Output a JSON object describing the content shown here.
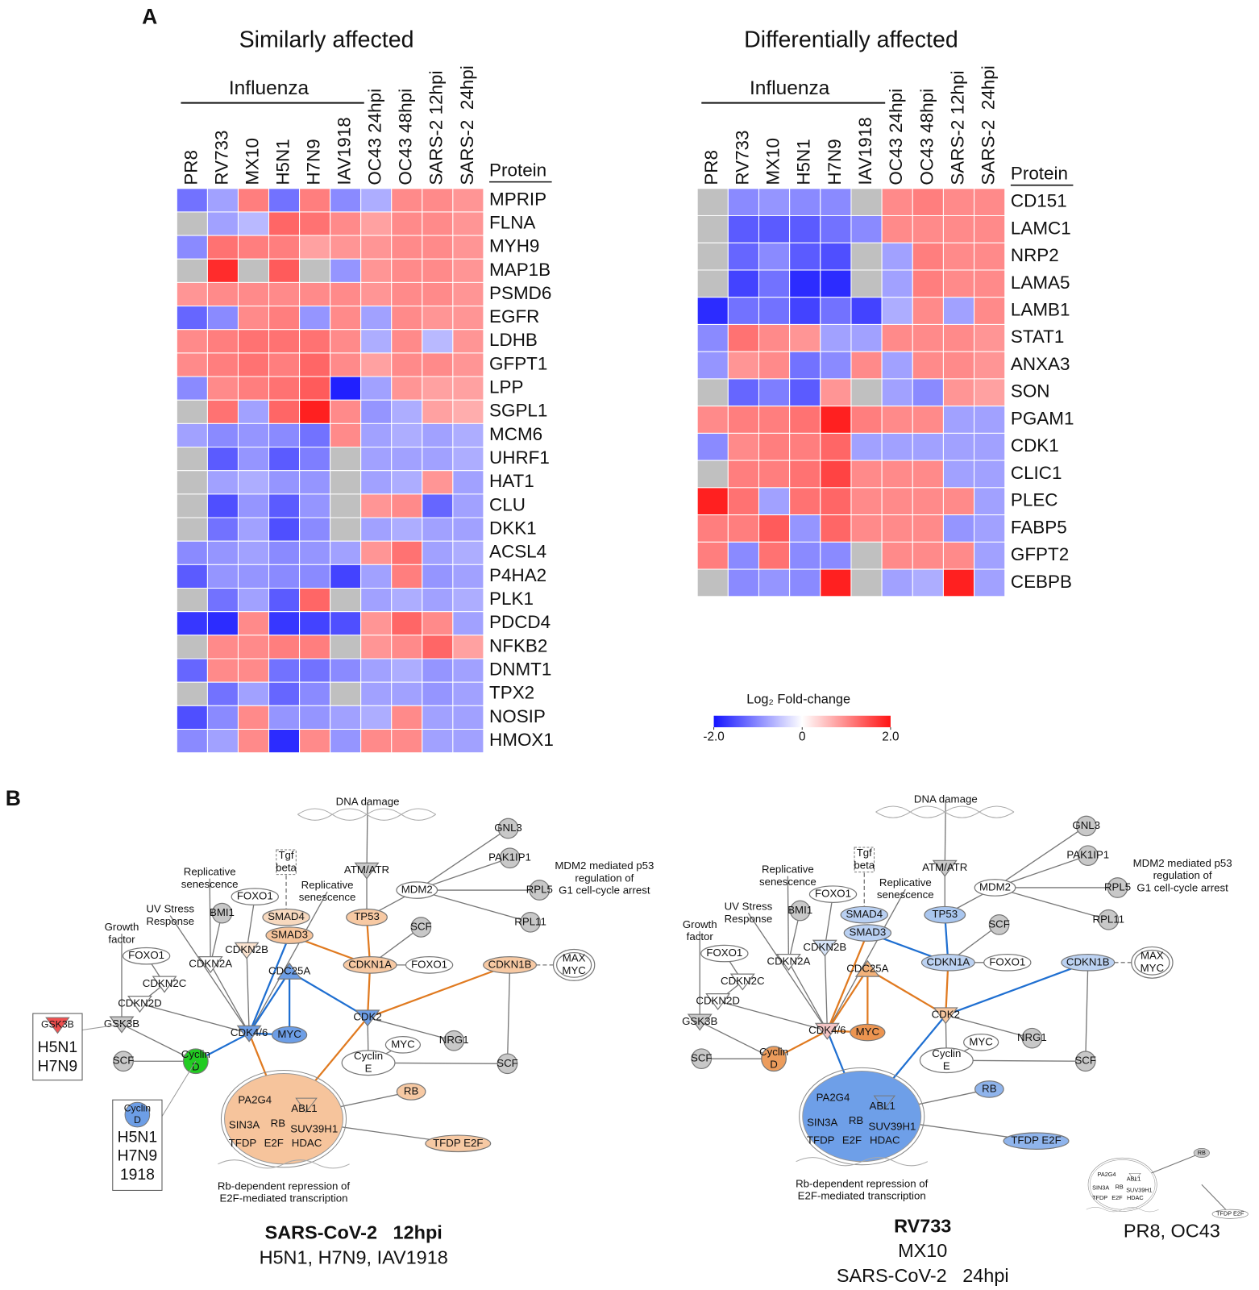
{
  "panel_labels": [
    "A",
    "B"
  ],
  "chart_data": [
    {
      "type": "heatmap",
      "title": "Similarly affected",
      "group_label": "Influenza",
      "row_header": "Protein",
      "columns": [
        "PR8",
        "RV733",
        "MX10",
        "H5N1",
        "H7N9",
        "IAV1918",
        "OC43 24hpi",
        "OC43 48hpi",
        "SARS-2 12hpi",
        "SARS-2  24hpi"
      ],
      "rows": [
        "MPRIP",
        "FLNA",
        "MYH9",
        "MAP1B",
        "PSMD6",
        "EGFR",
        "LDHB",
        "GFPT1",
        "LPP",
        "SGPL1",
        "MCM6",
        "UHRF1",
        "HAT1",
        "CLU",
        "DKK1",
        "ACSL4",
        "P4HA2",
        "PLK1",
        "PDCD4",
        "NFKB2",
        "DNMT1",
        "TPX2",
        "NOSIP",
        "HMOX1"
      ],
      "values": [
        [
          -1.2,
          -0.8,
          1.1,
          -1.2,
          1.1,
          -1.0,
          -0.7,
          1.0,
          1.0,
          0.9
        ],
        [
          null,
          -0.8,
          -0.6,
          1.3,
          1.2,
          1.0,
          0.8,
          1.0,
          1.0,
          0.9
        ],
        [
          -1.0,
          1.2,
          1.1,
          1.1,
          0.8,
          0.9,
          0.9,
          1.0,
          1.0,
          0.9
        ],
        [
          null,
          1.8,
          null,
          1.4,
          null,
          -0.9,
          0.9,
          1.0,
          1.0,
          0.9
        ],
        [
          0.9,
          1.0,
          1.0,
          1.0,
          1.0,
          1.0,
          0.9,
          1.0,
          1.0,
          0.9
        ],
        [
          -1.3,
          -1.0,
          1.0,
          1.1,
          -0.9,
          1.0,
          -0.8,
          1.0,
          0.9,
          0.9
        ],
        [
          1.0,
          1.1,
          1.2,
          1.2,
          1.2,
          1.0,
          -0.7,
          1.0,
          -0.6,
          0.9
        ],
        [
          1.0,
          1.1,
          1.2,
          1.1,
          1.3,
          1.0,
          0.8,
          1.0,
          1.0,
          0.9
        ],
        [
          -1.0,
          1.0,
          1.1,
          1.2,
          1.4,
          -1.9,
          -0.8,
          0.9,
          0.8,
          0.8
        ],
        [
          null,
          1.2,
          -0.8,
          1.3,
          1.9,
          1.0,
          -0.9,
          -0.7,
          0.8,
          0.7
        ],
        [
          -0.8,
          -1.0,
          -0.9,
          -1.0,
          -1.2,
          1.0,
          -0.8,
          -0.7,
          -0.8,
          -0.7
        ],
        [
          null,
          -1.4,
          -0.9,
          -1.4,
          -1.1,
          null,
          -0.8,
          -0.8,
          -0.8,
          -0.7
        ],
        [
          null,
          -0.8,
          -0.7,
          -0.9,
          -0.9,
          null,
          -0.8,
          -0.7,
          0.9,
          -0.8
        ],
        [
          null,
          -1.5,
          -0.9,
          -1.4,
          -0.9,
          null,
          0.9,
          1.0,
          -1.3,
          -0.8
        ],
        [
          null,
          -1.2,
          -0.8,
          -1.5,
          -1.0,
          null,
          -0.8,
          -0.7,
          -0.8,
          -0.8
        ],
        [
          -1.0,
          -0.9,
          -0.8,
          -1.0,
          -0.9,
          -0.8,
          0.9,
          1.2,
          -0.8,
          -0.7
        ],
        [
          -1.4,
          -0.9,
          -0.9,
          -1.0,
          -1.0,
          -1.6,
          -0.8,
          1.1,
          -0.9,
          -0.8
        ],
        [
          null,
          -1.2,
          -0.8,
          -1.4,
          1.3,
          null,
          -0.8,
          -0.7,
          -0.8,
          -0.7
        ],
        [
          -1.7,
          -1.8,
          1.0,
          -1.7,
          -1.6,
          -1.5,
          0.9,
          1.3,
          1.0,
          -0.8
        ],
        [
          null,
          1.0,
          1.0,
          1.1,
          1.1,
          null,
          0.9,
          1.0,
          1.3,
          0.8
        ],
        [
          -1.3,
          1.0,
          1.0,
          -1.2,
          -1.2,
          -1.0,
          -0.8,
          -0.7,
          -0.9,
          -0.8
        ],
        [
          null,
          -1.2,
          -0.8,
          -1.3,
          -1.0,
          null,
          -0.8,
          -0.8,
          -0.9,
          -0.8
        ],
        [
          -1.5,
          -1.0,
          1.0,
          -0.9,
          -0.9,
          -0.8,
          -0.7,
          1.0,
          -0.8,
          -0.8
        ],
        [
          -1.0,
          -0.8,
          1.0,
          -1.8,
          1.0,
          -0.9,
          1.0,
          1.0,
          -0.8,
          -0.8
        ]
      ]
    },
    {
      "type": "heatmap",
      "title": "Differentially affected",
      "group_label": "Influenza",
      "row_header": "Protein",
      "columns": [
        "PR8",
        "RV733",
        "MX10",
        "H5N1",
        "H7N9",
        "IAV1918",
        "OC43 24hpi",
        "OC43 48hpi",
        "SARS-2 12hpi",
        "SARS-2  24hpi"
      ],
      "rows": [
        "CD151",
        "LAMC1",
        "NRP2",
        "LAMA5",
        "LAMB1",
        "STAT1",
        "ANXA3",
        "SON",
        "PGAM1",
        "CDK1",
        "CLIC1",
        "PLEC",
        "FABP5",
        "GFPT2",
        "CEBPB"
      ],
      "values": [
        [
          null,
          -1.0,
          -0.9,
          -1.0,
          -1.0,
          null,
          1.0,
          1.1,
          1.0,
          1.0
        ],
        [
          null,
          -1.4,
          -1.4,
          -1.4,
          -1.2,
          -1.0,
          1.0,
          1.0,
          1.0,
          1.0
        ],
        [
          null,
          -1.3,
          -1.0,
          -1.4,
          -1.5,
          null,
          -0.8,
          1.1,
          1.0,
          1.0
        ],
        [
          null,
          -1.6,
          -1.2,
          -1.8,
          -1.8,
          null,
          -0.8,
          1.1,
          1.0,
          1.0
        ],
        [
          -1.8,
          -1.2,
          -1.2,
          -1.6,
          -1.2,
          -1.6,
          -0.7,
          1.0,
          -0.8,
          1.0
        ],
        [
          -1.0,
          1.2,
          1.0,
          0.9,
          -0.8,
          -0.8,
          1.0,
          1.0,
          1.0,
          0.9
        ],
        [
          -0.9,
          0.9,
          1.0,
          -1.2,
          -1.0,
          1.0,
          -0.8,
          1.0,
          1.0,
          0.9
        ],
        [
          null,
          -1.3,
          -1.1,
          -1.4,
          0.9,
          null,
          -0.8,
          -1.0,
          0.9,
          0.8
        ],
        [
          1.0,
          1.1,
          1.1,
          1.2,
          1.9,
          1.1,
          1.0,
          1.0,
          -0.8,
          -0.8
        ],
        [
          -1.0,
          1.0,
          1.1,
          1.1,
          1.3,
          -0.8,
          -0.8,
          -0.8,
          -0.8,
          -0.8
        ],
        [
          null,
          1.1,
          1.1,
          1.2,
          1.6,
          1.0,
          1.0,
          1.0,
          -0.8,
          -0.8
        ],
        [
          1.9,
          1.2,
          -0.8,
          1.2,
          1.3,
          1.0,
          1.0,
          1.0,
          1.0,
          -0.8
        ],
        [
          1.1,
          1.1,
          1.4,
          -0.9,
          1.3,
          1.0,
          1.0,
          1.0,
          -0.9,
          -0.8
        ],
        [
          1.1,
          -1.0,
          1.2,
          -1.0,
          -1.0,
          null,
          1.0,
          1.0,
          1.0,
          -0.8
        ],
        [
          null,
          -1.0,
          -0.9,
          -1.0,
          1.9,
          null,
          -0.8,
          -0.7,
          1.9,
          -0.8
        ]
      ]
    }
  ],
  "colorbar": {
    "title": "Log₂ Fold-change",
    "zlim": [
      -2,
      2
    ],
    "ticks": [
      {
        "value": -2,
        "label": "-2.0"
      },
      0,
      {
        "value": 2,
        "label": "2.0"
      }
    ],
    "colors": [
      "#1414ff",
      "#ffffff",
      "#ff1414"
    ],
    "missing_color": "#c0c0c0"
  },
  "diagrams": [
    {
      "nodes": [
        {
          "label": "DNA damage"
        },
        {
          "label": "ATM/ATR"
        },
        {
          "label": "TP53"
        },
        {
          "label": "MDM2"
        },
        {
          "label": "GNL3"
        },
        {
          "label": "PAK1IP1"
        },
        {
          "label": "RPL5"
        },
        {
          "label": "RPL11"
        },
        {
          "label": [
            "MDM2 mediated p53",
            "regulation of",
            "G1 cell-cycle arrest"
          ]
        },
        {
          "label": [
            "Tgf",
            "beta"
          ]
        },
        {
          "label": "SMAD4"
        },
        {
          "label": "SMAD3"
        },
        {
          "label": [
            "Replicative",
            "senescence"
          ]
        },
        {
          "label": [
            "Replicative",
            "senescence"
          ]
        },
        {
          "label": "FOXO1"
        },
        {
          "label": "BMI1"
        },
        {
          "label": [
            "UV Stress",
            "Response"
          ]
        },
        {
          "label": "CDKN2B"
        },
        {
          "label": "CDKN2A"
        },
        {
          "label": [
            "Growth",
            "factor"
          ]
        },
        {
          "label": "FOXO1"
        },
        {
          "label": "CDKN2C"
        },
        {
          "label": "CDKN2D"
        },
        {
          "label": "GSK3B"
        },
        {
          "label": "SCF"
        },
        {
          "label": "CDKN1A"
        },
        {
          "label": "FOXO1"
        },
        {
          "label": "CDKN1B"
        },
        {
          "label": [
            "MAX",
            "MYC"
          ]
        },
        {
          "label": "CDC25A"
        },
        {
          "label": "CDK2"
        },
        {
          "label": "CDK4/6"
        },
        {
          "label": "MYC"
        },
        {
          "label": [
            "Cyclin",
            "D"
          ]
        },
        {
          "label": "SCF"
        },
        {
          "label": "SCF"
        },
        {
          "label": "MYC"
        },
        {
          "label": "NRG1"
        },
        {
          "label": [
            "Cyclin",
            "E"
          ]
        },
        {
          "label": "RB"
        },
        {
          "label": "TFDP E2F"
        },
        {
          "label": [
            "Rb-dependent repression of",
            "E2F-mediated transcription"
          ]
        }
      ],
      "complex": [
        "PA2G4",
        "ABL1",
        "SIN3A",
        "RB",
        "SUV39H1",
        "TFDP",
        "E2F",
        "HDAC"
      ],
      "boxes": [
        {
          "label": "GSK3B",
          "strains": [
            "H5N1",
            "H7N9"
          ]
        },
        {
          "label": [
            "Cyclin",
            "D"
          ],
          "strains": [
            "H5N1",
            "H7N9",
            "1918"
          ]
        }
      ],
      "caption": [
        "SARS-CoV-2   12hpi",
        "H5N1, H7N9, IAV1918"
      ]
    },
    {
      "nodes": [
        {
          "label": "DNA damage"
        },
        {
          "label": "ATM/ATR"
        },
        {
          "label": "TP53"
        },
        {
          "label": "MDM2"
        },
        {
          "label": "GNL3"
        },
        {
          "label": "PAK1IP1"
        },
        {
          "label": "RPL5"
        },
        {
          "label": "RPL11"
        },
        {
          "label": [
            "MDM2 mediated p53",
            "regulation of",
            "G1 cell-cycle arrest"
          ]
        },
        {
          "label": [
            "Tgf",
            "beta"
          ]
        },
        {
          "label": "SMAD4"
        },
        {
          "label": "SMAD3"
        },
        {
          "label": [
            "Replicative",
            "senescence"
          ]
        },
        {
          "label": [
            "Replicative",
            "senescence"
          ]
        },
        {
          "label": "FOXO1"
        },
        {
          "label": "BMI1"
        },
        {
          "label": [
            "UV Stress",
            "Response"
          ]
        },
        {
          "label": "CDKN2B"
        },
        {
          "label": "CDKN2A"
        },
        {
          "label": [
            "Growth",
            "factor"
          ]
        },
        {
          "label": "FOXO1"
        },
        {
          "label": "CDKN2C"
        },
        {
          "label": "CDKN2D"
        },
        {
          "label": "GSK3B"
        },
        {
          "label": "SCF"
        },
        {
          "label": "CDKN1A"
        },
        {
          "label": "FOXO1"
        },
        {
          "label": "CDKN1B"
        },
        {
          "label": [
            "MAX",
            "MYC"
          ]
        },
        {
          "label": "CDC25A"
        },
        {
          "label": "CDK2"
        },
        {
          "label": "CDK4/6"
        },
        {
          "label": "MYC"
        },
        {
          "label": [
            "Cyclin",
            "D"
          ]
        },
        {
          "label": "SCF"
        },
        {
          "label": "SCF"
        },
        {
          "label": "MYC"
        },
        {
          "label": "NRG1"
        },
        {
          "label": [
            "Cyclin",
            "E"
          ]
        },
        {
          "label": "RB"
        },
        {
          "label": "TFDP E2F"
        },
        {
          "label": [
            "Rb-dependent repression of",
            "E2F-mediated transcription"
          ]
        }
      ],
      "complex": [
        "PA2G4",
        "ABL1",
        "SIN3A",
        "RB",
        "SUV39H1",
        "TFDP",
        "E2F",
        "HDAC"
      ],
      "caption": [
        "RV733",
        "MX10",
        "SARS-CoV-2   24hpi"
      ]
    },
    {
      "nodes": [
        {
          "label": "RB"
        },
        {
          "label": "TFDP E2F"
        }
      ],
      "complex": [
        "PA2G4",
        "ABL1",
        "SIN3A",
        "RB",
        "SUV39H1",
        "TFDP",
        "E2F",
        "HDAC"
      ],
      "caption": [
        "PR8, OC43"
      ]
    }
  ]
}
